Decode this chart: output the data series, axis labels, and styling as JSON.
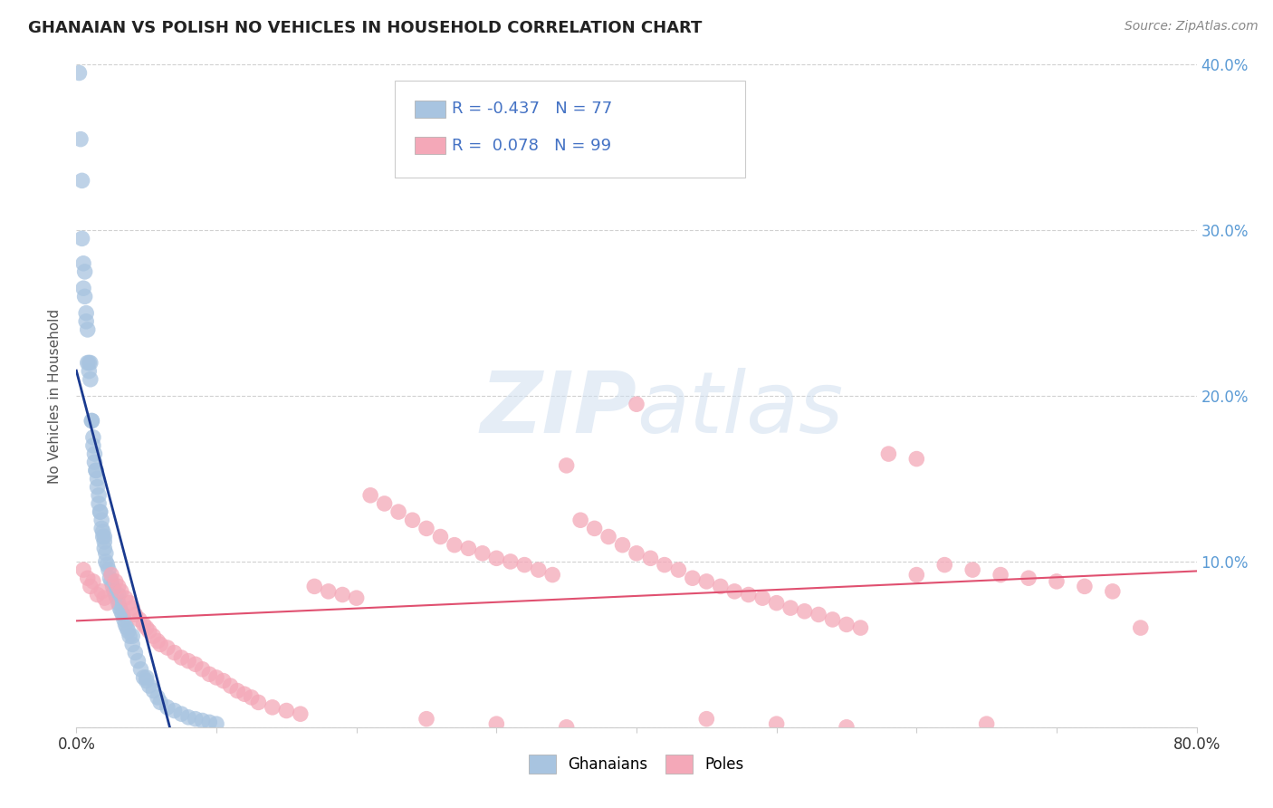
{
  "title": "GHANAIAN VS POLISH NO VEHICLES IN HOUSEHOLD CORRELATION CHART",
  "source": "Source: ZipAtlas.com",
  "ylabel": "No Vehicles in Household",
  "xlim": [
    0.0,
    0.8
  ],
  "ylim": [
    0.0,
    0.4
  ],
  "watermark": "ZIPatlas",
  "legend_blue_r": "-0.437",
  "legend_blue_n": "77",
  "legend_pink_r": "0.078",
  "legend_pink_n": "99",
  "ghanaian_color": "#a8c4e0",
  "poles_color": "#f4a8b8",
  "blue_line_color": "#1a3a8f",
  "pink_line_color": "#e05070",
  "background_color": "#ffffff",
  "right_tick_color": "#5b9bd5",
  "ghanaians_x": [
    0.002,
    0.003,
    0.004,
    0.004,
    0.005,
    0.005,
    0.006,
    0.006,
    0.007,
    0.007,
    0.008,
    0.008,
    0.009,
    0.009,
    0.01,
    0.01,
    0.011,
    0.011,
    0.012,
    0.012,
    0.013,
    0.013,
    0.014,
    0.014,
    0.015,
    0.015,
    0.016,
    0.016,
    0.017,
    0.017,
    0.018,
    0.018,
    0.019,
    0.019,
    0.02,
    0.02,
    0.021,
    0.021,
    0.022,
    0.023,
    0.024,
    0.025,
    0.026,
    0.027,
    0.028,
    0.029,
    0.03,
    0.031,
    0.032,
    0.033,
    0.034,
    0.035,
    0.036,
    0.037,
    0.038,
    0.04,
    0.042,
    0.044,
    0.046,
    0.048,
    0.05,
    0.052,
    0.055,
    0.058,
    0.06,
    0.065,
    0.07,
    0.075,
    0.08,
    0.085,
    0.09,
    0.095,
    0.1,
    0.02,
    0.03,
    0.04,
    0.05
  ],
  "ghanaians_y": [
    0.395,
    0.355,
    0.33,
    0.295,
    0.28,
    0.265,
    0.275,
    0.26,
    0.25,
    0.245,
    0.24,
    0.22,
    0.22,
    0.215,
    0.22,
    0.21,
    0.185,
    0.185,
    0.175,
    0.17,
    0.165,
    0.16,
    0.155,
    0.155,
    0.15,
    0.145,
    0.14,
    0.135,
    0.13,
    0.13,
    0.125,
    0.12,
    0.118,
    0.115,
    0.112,
    0.108,
    0.105,
    0.1,
    0.098,
    0.095,
    0.09,
    0.088,
    0.085,
    0.082,
    0.08,
    0.078,
    0.075,
    0.072,
    0.07,
    0.068,
    0.065,
    0.062,
    0.06,
    0.058,
    0.055,
    0.05,
    0.045,
    0.04,
    0.035,
    0.03,
    0.028,
    0.025,
    0.022,
    0.018,
    0.015,
    0.012,
    0.01,
    0.008,
    0.006,
    0.005,
    0.004,
    0.003,
    0.002,
    0.115,
    0.08,
    0.055,
    0.03
  ],
  "poles_x": [
    0.005,
    0.008,
    0.01,
    0.012,
    0.015,
    0.018,
    0.02,
    0.022,
    0.025,
    0.028,
    0.03,
    0.032,
    0.035,
    0.038,
    0.04,
    0.042,
    0.045,
    0.048,
    0.05,
    0.052,
    0.055,
    0.058,
    0.06,
    0.065,
    0.07,
    0.075,
    0.08,
    0.085,
    0.09,
    0.095,
    0.1,
    0.105,
    0.11,
    0.115,
    0.12,
    0.125,
    0.13,
    0.14,
    0.15,
    0.16,
    0.17,
    0.18,
    0.19,
    0.2,
    0.21,
    0.22,
    0.23,
    0.24,
    0.25,
    0.26,
    0.27,
    0.28,
    0.29,
    0.3,
    0.31,
    0.32,
    0.33,
    0.34,
    0.35,
    0.36,
    0.37,
    0.38,
    0.39,
    0.4,
    0.41,
    0.42,
    0.43,
    0.44,
    0.45,
    0.46,
    0.47,
    0.48,
    0.49,
    0.5,
    0.51,
    0.52,
    0.53,
    0.54,
    0.55,
    0.56,
    0.58,
    0.6,
    0.62,
    0.64,
    0.66,
    0.68,
    0.7,
    0.72,
    0.74,
    0.76,
    0.25,
    0.3,
    0.35,
    0.45,
    0.5,
    0.55,
    0.4,
    0.6,
    0.65
  ],
  "poles_y": [
    0.095,
    0.09,
    0.085,
    0.088,
    0.08,
    0.082,
    0.078,
    0.075,
    0.092,
    0.088,
    0.085,
    0.082,
    0.078,
    0.075,
    0.072,
    0.068,
    0.065,
    0.062,
    0.06,
    0.058,
    0.055,
    0.052,
    0.05,
    0.048,
    0.045,
    0.042,
    0.04,
    0.038,
    0.035,
    0.032,
    0.03,
    0.028,
    0.025,
    0.022,
    0.02,
    0.018,
    0.015,
    0.012,
    0.01,
    0.008,
    0.085,
    0.082,
    0.08,
    0.078,
    0.14,
    0.135,
    0.13,
    0.125,
    0.12,
    0.115,
    0.11,
    0.108,
    0.105,
    0.102,
    0.1,
    0.098,
    0.095,
    0.092,
    0.158,
    0.125,
    0.12,
    0.115,
    0.11,
    0.105,
    0.102,
    0.098,
    0.095,
    0.09,
    0.088,
    0.085,
    0.082,
    0.08,
    0.078,
    0.075,
    0.072,
    0.07,
    0.068,
    0.065,
    0.062,
    0.06,
    0.165,
    0.162,
    0.098,
    0.095,
    0.092,
    0.09,
    0.088,
    0.085,
    0.082,
    0.06,
    0.005,
    0.002,
    0.0,
    0.005,
    0.002,
    0.0,
    0.195,
    0.092,
    0.002
  ]
}
